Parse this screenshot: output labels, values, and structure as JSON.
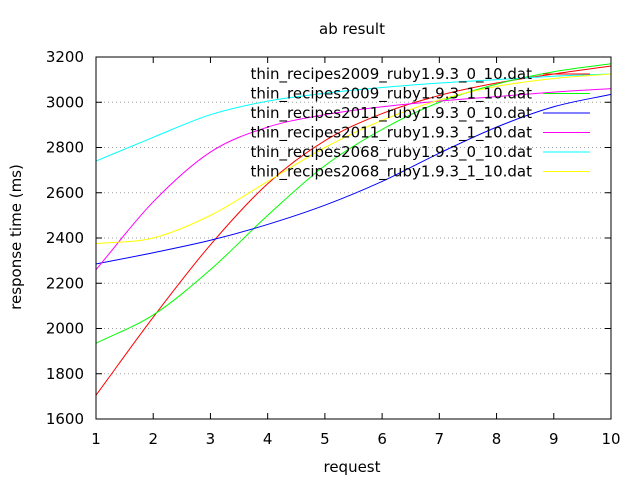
{
  "chart_data": {
    "type": "line",
    "title": "ab result",
    "xlabel": "request",
    "ylabel": "response time (ms)",
    "xlim": [
      1,
      10
    ],
    "ylim": [
      1600,
      3200
    ],
    "xticks": [
      1,
      2,
      3,
      4,
      5,
      6,
      7,
      8,
      9,
      10
    ],
    "yticks": [
      1600,
      1800,
      2000,
      2200,
      2400,
      2600,
      2800,
      3000,
      3200
    ],
    "grid": "dotted-horizontal",
    "legend_position": "top-right",
    "series": [
      {
        "name": "thin_recipes2009_ruby1.9.3_0_10.dat",
        "color": "#ff0000",
        "x": [
          1,
          2,
          3,
          4,
          5,
          6,
          7,
          8,
          9,
          10
        ],
        "y": [
          1705,
          2050,
          2370,
          2640,
          2830,
          2950,
          3030,
          3085,
          3125,
          3160
        ]
      },
      {
        "name": "thin_recipes2009_ruby1.9.3_1_10.dat",
        "color": "#00ff00",
        "x": [
          1,
          2,
          3,
          4,
          5,
          6,
          7,
          8,
          9,
          10
        ],
        "y": [
          1935,
          2060,
          2260,
          2500,
          2720,
          2880,
          3000,
          3080,
          3135,
          3170
        ]
      },
      {
        "name": "thin_recipes2011_ruby1.9.3_0_10.dat",
        "color": "#0000ff",
        "x": [
          1,
          2,
          3,
          4,
          5,
          6,
          7,
          8,
          9,
          10
        ],
        "y": [
          2285,
          2335,
          2390,
          2460,
          2545,
          2650,
          2775,
          2890,
          2980,
          3035
        ]
      },
      {
        "name": "thin_recipes2011_ruby1.9.3_1_10.dat",
        "color": "#ff00ff",
        "x": [
          1,
          2,
          3,
          4,
          5,
          6,
          7,
          8,
          9,
          10
        ],
        "y": [
          2260,
          2560,
          2780,
          2890,
          2945,
          2980,
          3005,
          3025,
          3045,
          3060
        ]
      },
      {
        "name": "thin_recipes2068_ruby1.9.3_0_10.dat",
        "color": "#00ffff",
        "x": [
          1,
          2,
          3,
          4,
          5,
          6,
          7,
          8,
          9,
          10
        ],
        "y": [
          2740,
          2845,
          2945,
          3005,
          3040,
          3065,
          3085,
          3100,
          3115,
          3125
        ]
      },
      {
        "name": "thin_recipes2068_ruby1.9.3_1_10.dat",
        "color": "#ffff00",
        "x": [
          1,
          2,
          3,
          4,
          5,
          6,
          7,
          8,
          9,
          10
        ],
        "y": [
          2375,
          2400,
          2500,
          2650,
          2800,
          2920,
          3010,
          3070,
          3105,
          3125
        ]
      }
    ]
  }
}
